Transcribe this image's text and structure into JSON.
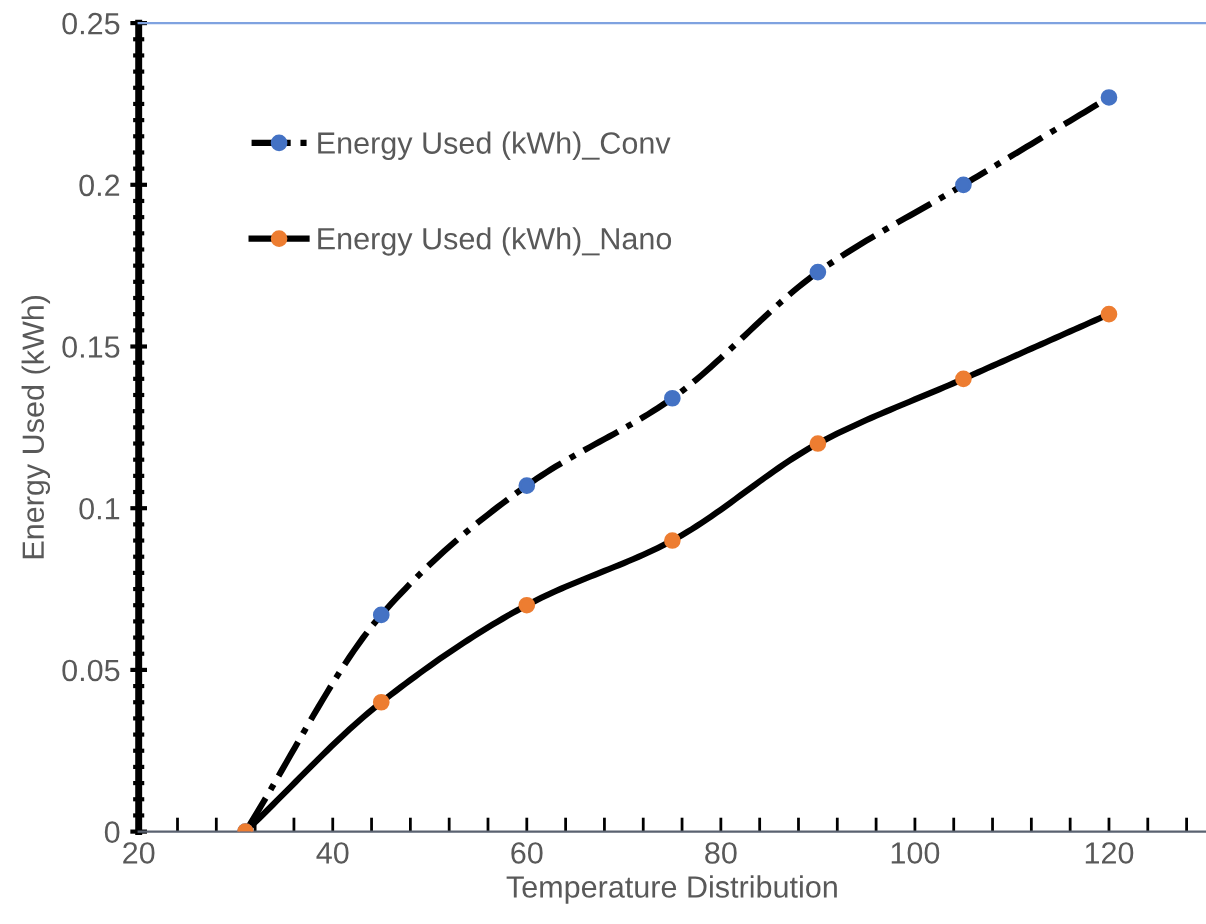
{
  "chart_data": {
    "type": "line",
    "xlabel": "Temperature Distribution",
    "ylabel": "Energy Used (kWh)",
    "xlim": [
      20,
      130
    ],
    "xticks": [
      20,
      40,
      60,
      80,
      100,
      120
    ],
    "ylim": [
      0,
      0.25
    ],
    "yticks": [
      0,
      0.05,
      0.1,
      0.15,
      0.2,
      0.25
    ],
    "x": [
      31,
      45,
      60,
      75,
      90,
      105,
      120
    ],
    "series": [
      {
        "name": "Energy Used (kWh)_Conv",
        "color": "#4472c4",
        "values": [
          0,
          0.067,
          0.107,
          0.134,
          0.173,
          0.2,
          0.227
        ],
        "line_style": "dashdot"
      },
      {
        "name": "Energy Used (kWh)_Nano",
        "color": "#ed7d31",
        "values": [
          0,
          0.04,
          0.07,
          0.09,
          0.12,
          0.14,
          0.16
        ],
        "line_style": "solid"
      }
    ],
    "marker": "circle",
    "legend": "top left",
    "grid": false
  }
}
